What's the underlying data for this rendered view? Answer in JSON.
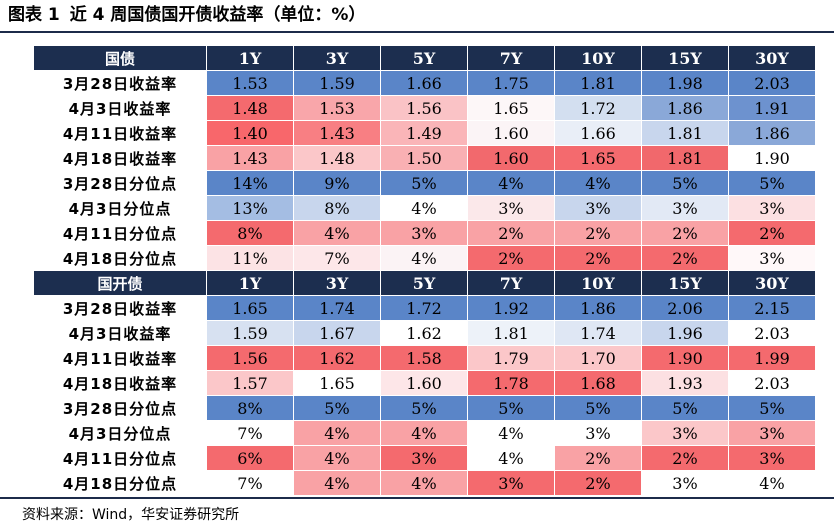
{
  "title": {
    "fig_no": "图表 1",
    "text": "近 4 周国债国开债收益率（单位：%）"
  },
  "source": "资料来源：Wind，华安证券研究所",
  "sections": [
    {
      "name": "国债",
      "columns": [
        "1Y",
        "3Y",
        "5Y",
        "7Y",
        "10Y",
        "15Y",
        "30Y"
      ],
      "rows": [
        {
          "label": "3月28日收益率",
          "cells": [
            {
              "v": "1.53",
              "c": "#5a85c8"
            },
            {
              "v": "1.59",
              "c": "#5a85c8"
            },
            {
              "v": "1.66",
              "c": "#5a85c8"
            },
            {
              "v": "1.75",
              "c": "#5a85c8"
            },
            {
              "v": "1.81",
              "c": "#5a85c8"
            },
            {
              "v": "1.98",
              "c": "#5a85c8"
            },
            {
              "v": "2.03",
              "c": "#5a85c8"
            }
          ]
        },
        {
          "label": "4月3日收益率",
          "cells": [
            {
              "v": "1.48",
              "c": "#f46a6e"
            },
            {
              "v": "1.53",
              "c": "#f9a6aa"
            },
            {
              "v": "1.56",
              "c": "#fac3c6"
            },
            {
              "v": "1.65",
              "c": "#fdf7f8"
            },
            {
              "v": "1.72",
              "c": "#d3dff0"
            },
            {
              "v": "1.86",
              "c": "#8aa8d8"
            },
            {
              "v": "1.91",
              "c": "#6d92cf"
            }
          ]
        },
        {
          "label": "4月11日收益率",
          "cells": [
            {
              "v": "1.40",
              "c": "#f8676b"
            },
            {
              "v": "1.43",
              "c": "#f87f83"
            },
            {
              "v": "1.49",
              "c": "#fab5b8"
            },
            {
              "v": "1.60",
              "c": "#fbf4f6"
            },
            {
              "v": "1.66",
              "c": "#e9eef7"
            },
            {
              "v": "1.81",
              "c": "#c8d6ed"
            },
            {
              "v": "1.86",
              "c": "#8aa8d8"
            }
          ]
        },
        {
          "label": "4月18日收益率",
          "cells": [
            {
              "v": "1.43",
              "c": "#f9a2a5"
            },
            {
              "v": "1.48",
              "c": "#fbc7c9"
            },
            {
              "v": "1.50",
              "c": "#f9b0b3"
            },
            {
              "v": "1.60",
              "c": "#f2696d"
            },
            {
              "v": "1.65",
              "c": "#f46a6e"
            },
            {
              "v": "1.81",
              "c": "#f1686c"
            },
            {
              "v": "1.90",
              "c": "#ffffff"
            }
          ]
        },
        {
          "label": "3月28日分位点",
          "cells": [
            {
              "v": "14%",
              "c": "#5a85c8"
            },
            {
              "v": "9%",
              "c": "#5a85c8"
            },
            {
              "v": "5%",
              "c": "#5a85c8"
            },
            {
              "v": "4%",
              "c": "#5a85c8"
            },
            {
              "v": "4%",
              "c": "#5a85c8"
            },
            {
              "v": "5%",
              "c": "#5a85c8"
            },
            {
              "v": "5%",
              "c": "#5a85c8"
            }
          ]
        },
        {
          "label": "4月3日分位点",
          "cells": [
            {
              "v": "13%",
              "c": "#a4bde3"
            },
            {
              "v": "8%",
              "c": "#c8d6ed"
            },
            {
              "v": "4%",
              "c": "#ffffff"
            },
            {
              "v": "3%",
              "c": "#fbe8ea"
            },
            {
              "v": "3%",
              "c": "#c8d6ed"
            },
            {
              "v": "3%",
              "c": "#e2e9f5"
            },
            {
              "v": "3%",
              "c": "#fce0e2"
            }
          ]
        },
        {
          "label": "4月11日分位点",
          "cells": [
            {
              "v": "8%",
              "c": "#f46a6e"
            },
            {
              "v": "4%",
              "c": "#f9a2a5"
            },
            {
              "v": "3%",
              "c": "#f9a2a5"
            },
            {
              "v": "2%",
              "c": "#f9a2a5"
            },
            {
              "v": "2%",
              "c": "#f9a2a5"
            },
            {
              "v": "2%",
              "c": "#f9a2a5"
            },
            {
              "v": "2%",
              "c": "#f46a6e"
            }
          ]
        },
        {
          "label": "4月18日分位点",
          "cells": [
            {
              "v": "11%",
              "c": "#fce3e5"
            },
            {
              "v": "7%",
              "c": "#fde7e9"
            },
            {
              "v": "4%",
              "c": "#fbf3f5"
            },
            {
              "v": "2%",
              "c": "#f46a6e"
            },
            {
              "v": "2%",
              "c": "#f46a6e"
            },
            {
              "v": "2%",
              "c": "#f46a6e"
            },
            {
              "v": "3%",
              "c": "#fff8f9"
            }
          ]
        }
      ]
    },
    {
      "name": "国开债",
      "columns": [
        "1Y",
        "3Y",
        "5Y",
        "7Y",
        "10Y",
        "15Y",
        "30Y"
      ],
      "rows": [
        {
          "label": "3月28日收益率",
          "cells": [
            {
              "v": "1.65",
              "c": "#5a85c8"
            },
            {
              "v": "1.74",
              "c": "#5a85c8"
            },
            {
              "v": "1.72",
              "c": "#5a85c8"
            },
            {
              "v": "1.92",
              "c": "#5a85c8"
            },
            {
              "v": "1.86",
              "c": "#5a85c8"
            },
            {
              "v": "2.06",
              "c": "#5a85c8"
            },
            {
              "v": "2.15",
              "c": "#5a85c8"
            }
          ]
        },
        {
          "label": "4月3日收益率",
          "cells": [
            {
              "v": "1.59",
              "c": "#d7e1f1"
            },
            {
              "v": "1.67",
              "c": "#c8d6ed"
            },
            {
              "v": "1.62",
              "c": "#ffffff"
            },
            {
              "v": "1.81",
              "c": "#edf2f9"
            },
            {
              "v": "1.74",
              "c": "#dfe7f4"
            },
            {
              "v": "1.96",
              "c": "#c8d6ed"
            },
            {
              "v": "2.03",
              "c": "#ffffff"
            }
          ]
        },
        {
          "label": "4月11日收益率",
          "cells": [
            {
              "v": "1.56",
              "c": "#f46a6e"
            },
            {
              "v": "1.62",
              "c": "#f46a6e"
            },
            {
              "v": "1.58",
              "c": "#f46a6e"
            },
            {
              "v": "1.79",
              "c": "#fbc7c9"
            },
            {
              "v": "1.70",
              "c": "#fbc7c9"
            },
            {
              "v": "1.90",
              "c": "#f46a6e"
            },
            {
              "v": "1.99",
              "c": "#f46a6e"
            }
          ]
        },
        {
          "label": "4月18日收益率",
          "cells": [
            {
              "v": "1.57",
              "c": "#fbc7c9"
            },
            {
              "v": "1.65",
              "c": "#ffffff"
            },
            {
              "v": "1.60",
              "c": "#fde6e8"
            },
            {
              "v": "1.78",
              "c": "#f46a6e"
            },
            {
              "v": "1.68",
              "c": "#f46a6e"
            },
            {
              "v": "1.93",
              "c": "#fce0e2"
            },
            {
              "v": "2.03",
              "c": "#ffffff"
            }
          ]
        },
        {
          "label": "3月28日分位点",
          "cells": [
            {
              "v": "8%",
              "c": "#5a85c8"
            },
            {
              "v": "5%",
              "c": "#5a85c8"
            },
            {
              "v": "5%",
              "c": "#5a85c8"
            },
            {
              "v": "5%",
              "c": "#5a85c8"
            },
            {
              "v": "5%",
              "c": "#5a85c8"
            },
            {
              "v": "5%",
              "c": "#5a85c8"
            },
            {
              "v": "5%",
              "c": "#5a85c8"
            }
          ]
        },
        {
          "label": "4月3日分位点",
          "cells": [
            {
              "v": "7%",
              "c": "#ffffff"
            },
            {
              "v": "4%",
              "c": "#f9a2a5"
            },
            {
              "v": "4%",
              "c": "#f9a2a5"
            },
            {
              "v": "4%",
              "c": "#ffffff"
            },
            {
              "v": "3%",
              "c": "#ffffff"
            },
            {
              "v": "3%",
              "c": "#fbc7c9"
            },
            {
              "v": "3%",
              "c": "#f9a2a5"
            }
          ]
        },
        {
          "label": "4月11日分位点",
          "cells": [
            {
              "v": "6%",
              "c": "#f46a6e"
            },
            {
              "v": "4%",
              "c": "#f9a2a5"
            },
            {
              "v": "3%",
              "c": "#f46a6e"
            },
            {
              "v": "4%",
              "c": "#ffffff"
            },
            {
              "v": "2%",
              "c": "#f9a2a5"
            },
            {
              "v": "2%",
              "c": "#f46a6e"
            },
            {
              "v": "3%",
              "c": "#f46a6e"
            }
          ]
        },
        {
          "label": "4月18日分位点",
          "cells": [
            {
              "v": "7%",
              "c": "#ffffff"
            },
            {
              "v": "4%",
              "c": "#f9a2a5"
            },
            {
              "v": "4%",
              "c": "#f9a2a5"
            },
            {
              "v": "3%",
              "c": "#f46a6e"
            },
            {
              "v": "2%",
              "c": "#f46a6e"
            },
            {
              "v": "3%",
              "c": "#ffffff"
            },
            {
              "v": "4%",
              "c": "#ffffff"
            }
          ]
        }
      ]
    }
  ]
}
